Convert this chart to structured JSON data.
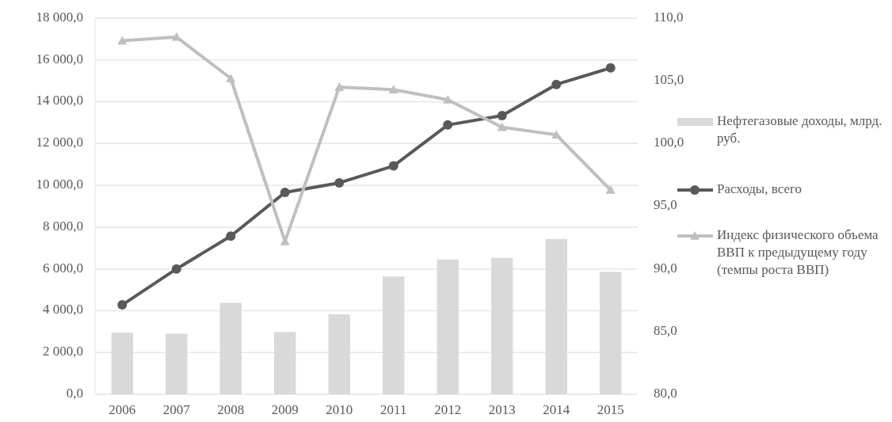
{
  "chart_data": {
    "type": "bar",
    "categories": [
      "2006",
      "2007",
      "2008",
      "2009",
      "2010",
      "2011",
      "2012",
      "2013",
      "2014",
      "2015"
    ],
    "series": [
      {
        "name": "Нефтегазовые доходы, млрд. руб.",
        "type": "bar",
        "color": "#d9d9d9",
        "values": [
          2950,
          2900,
          4380,
          2980,
          3830,
          5640,
          6450,
          6530,
          7430,
          5860
        ]
      },
      {
        "name": "Расходы, всего",
        "type": "line",
        "color": "#595959",
        "marker": "circle",
        "values": [
          4280,
          6000,
          7570,
          9660,
          10120,
          10930,
          12890,
          13340,
          14830,
          15620
        ]
      },
      {
        "name": "Индекс физического объема ВВП к предыдущему году (темпы роста ВВП)",
        "type": "line",
        "axis": "y2",
        "color": "#bfbfbf",
        "marker": "triangle",
        "values": [
          108.2,
          108.5,
          105.2,
          92.2,
          104.5,
          104.3,
          103.5,
          101.3,
          100.7,
          96.3
        ]
      }
    ],
    "ylim": [
      0,
      18000
    ],
    "yticks": [
      {
        "value": 0,
        "label": "0,0"
      },
      {
        "value": 2000,
        "label": "2 000,0"
      },
      {
        "value": 4000,
        "label": "4 000,0"
      },
      {
        "value": 6000,
        "label": "6 000,0"
      },
      {
        "value": 8000,
        "label": "8 000,0"
      },
      {
        "value": 10000,
        "label": "10 000,0"
      },
      {
        "value": 12000,
        "label": "12 000,0"
      },
      {
        "value": 14000,
        "label": "14 000,0"
      },
      {
        "value": 16000,
        "label": "16 000,0"
      },
      {
        "value": 18000,
        "label": "18 000,0"
      }
    ],
    "y2lim": [
      80,
      110
    ],
    "y2ticks": [
      {
        "value": 80,
        "label": "80,0"
      },
      {
        "value": 85,
        "label": "85,0"
      },
      {
        "value": 90,
        "label": "90,0"
      },
      {
        "value": 95,
        "label": "95,0"
      },
      {
        "value": 100,
        "label": "100,0"
      },
      {
        "value": 105,
        "label": "105,0"
      },
      {
        "value": 110,
        "label": "110,0"
      }
    ],
    "grid": "y",
    "legend": "right"
  }
}
